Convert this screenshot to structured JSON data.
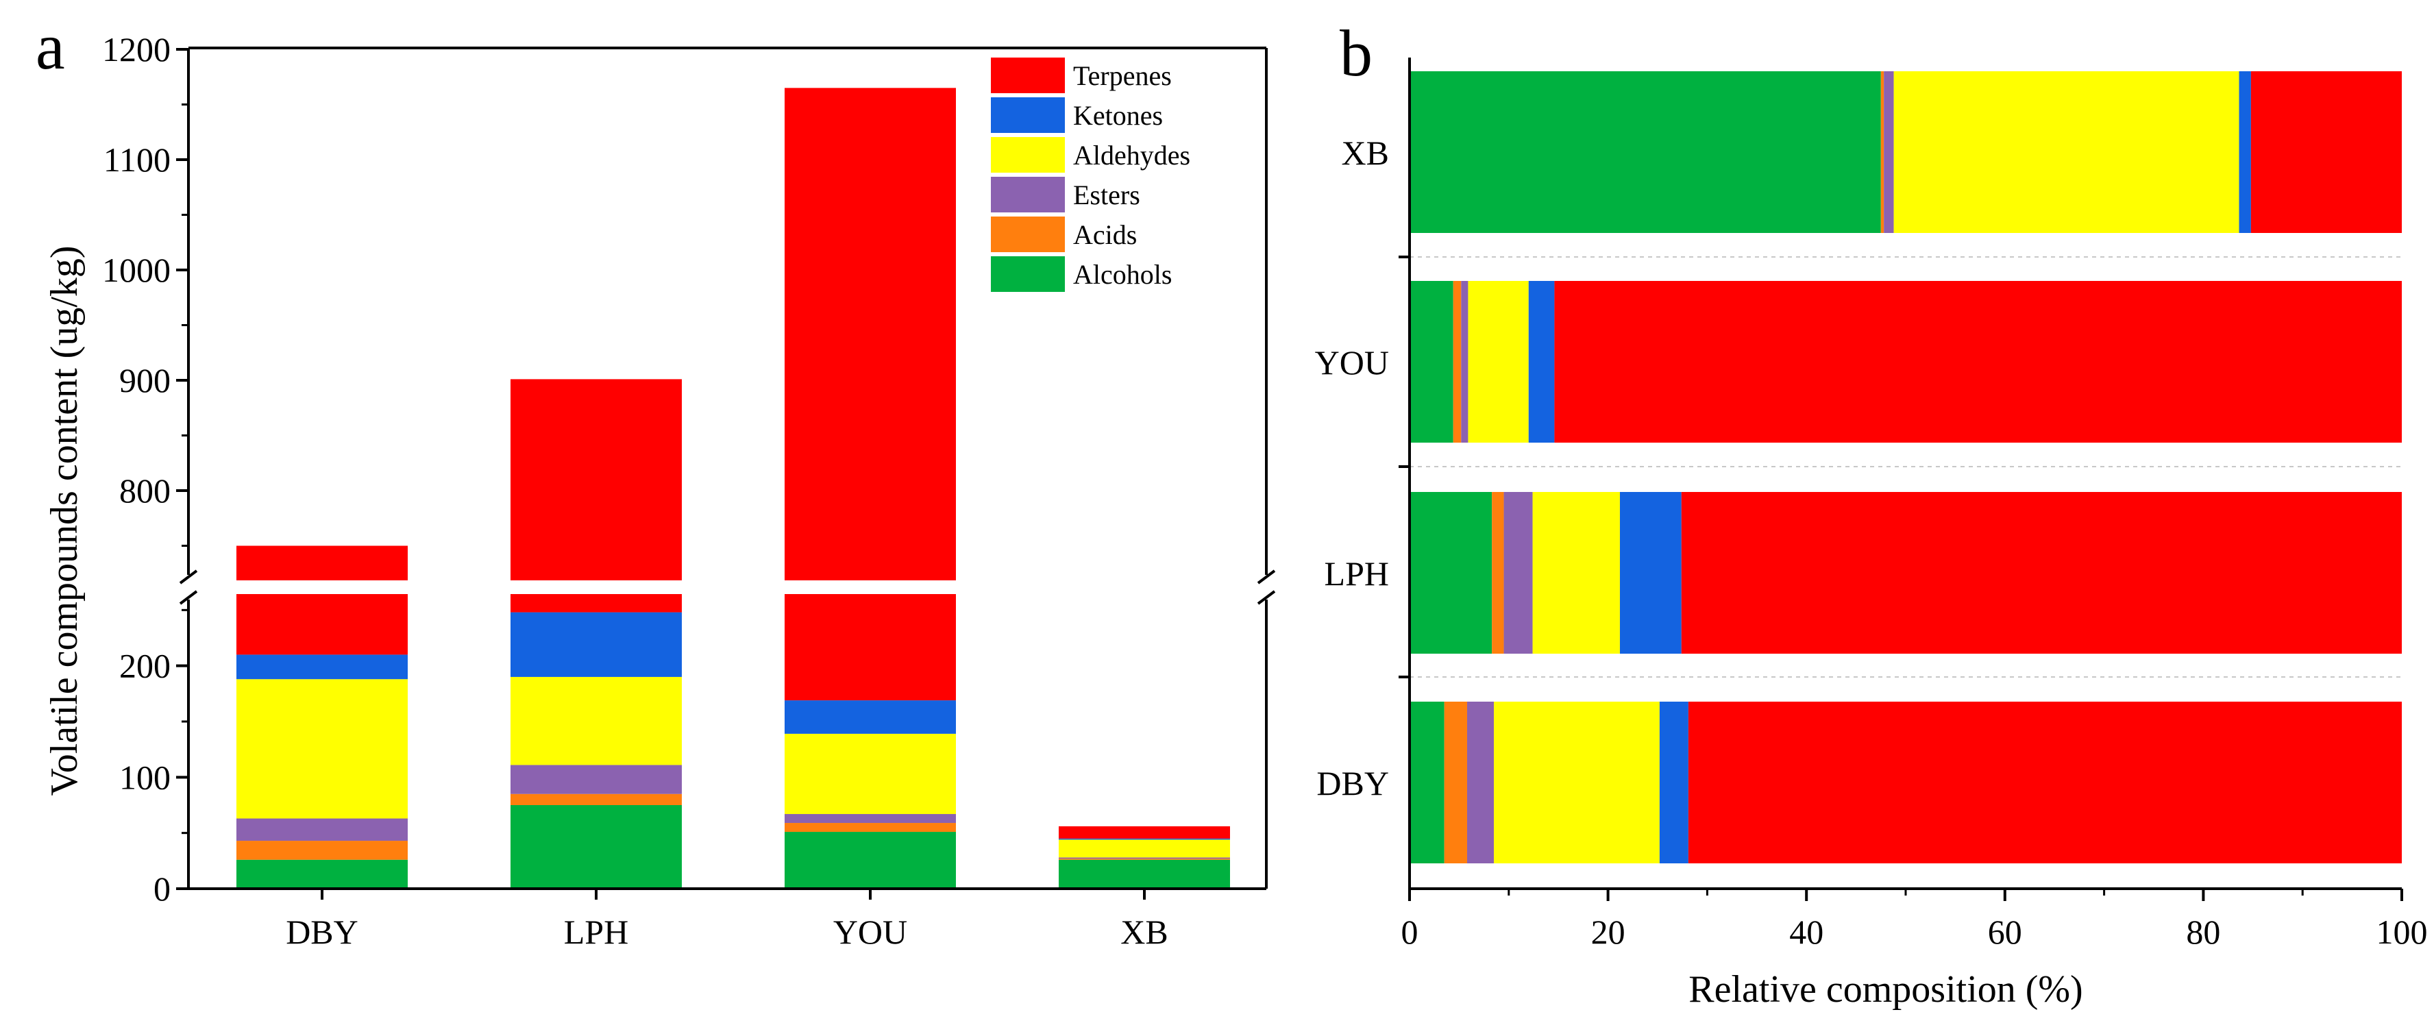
{
  "chart_data": [
    {
      "panel": "a",
      "type": "bar",
      "stacked": true,
      "broken_y_axis": true,
      "categories": [
        "DBY",
        "LPH",
        "YOU",
        "XB"
      ],
      "ylabel": "Volatile compounds content  (ug/kg)",
      "xlabel": "",
      "ylim_lower": [
        0,
        260
      ],
      "ylim_upper": [
        730,
        1200
      ],
      "yticks": [
        0,
        100,
        200,
        800,
        900,
        1000,
        1100,
        1200
      ],
      "legend_position": "top-right",
      "series": [
        {
          "name": "Alcohols",
          "color": "#00b140",
          "values": [
            26,
            75,
            51,
            26
          ]
        },
        {
          "name": "Acids",
          "color": "#ff7f0e",
          "values": [
            17,
            10,
            8,
            1
          ]
        },
        {
          "name": "Esters",
          "color": "#8b62b0",
          "values": [
            20,
            26,
            8,
            1
          ]
        },
        {
          "name": "Aldehydes",
          "color": "#ffff00",
          "values": [
            125,
            79,
            72,
            16
          ]
        },
        {
          "name": "Ketones",
          "color": "#1463e0",
          "values": [
            22,
            58,
            30,
            1
          ]
        },
        {
          "name": "Terpenes",
          "color": "#ff0000",
          "values": [
            540,
            653,
            996,
            11
          ]
        }
      ],
      "totals": [
        750,
        901,
        1165,
        56
      ]
    },
    {
      "panel": "b",
      "type": "bar",
      "orientation": "horizontal",
      "stacked": true,
      "categories": [
        "XB",
        "YOU",
        "LPH",
        "DBY"
      ],
      "xlabel": "Relative composition (%)",
      "ylabel": "",
      "xlim": [
        0,
        100
      ],
      "xticks": [
        0,
        20,
        40,
        60,
        80,
        100
      ],
      "series": [
        {
          "name": "Alcohols",
          "color": "#00b140",
          "values": [
            47.5,
            4.4,
            8.3,
            3.5
          ]
        },
        {
          "name": "Acids",
          "color": "#ff7f0e",
          "values": [
            0.3,
            0.8,
            1.2,
            2.3
          ]
        },
        {
          "name": "Esters",
          "color": "#8b62b0",
          "values": [
            1.0,
            0.7,
            2.9,
            2.7
          ]
        },
        {
          "name": "Aldehydes",
          "color": "#ffff00",
          "values": [
            34.8,
            6.1,
            8.8,
            16.7
          ]
        },
        {
          "name": "Ketones",
          "color": "#1463e0",
          "values": [
            1.2,
            2.6,
            6.2,
            2.9
          ]
        },
        {
          "name": "Terpenes",
          "color": "#ff0000",
          "values": [
            15.2,
            85.4,
            72.6,
            71.9
          ]
        }
      ]
    }
  ],
  "panels": {
    "a": "a",
    "b": "b"
  }
}
